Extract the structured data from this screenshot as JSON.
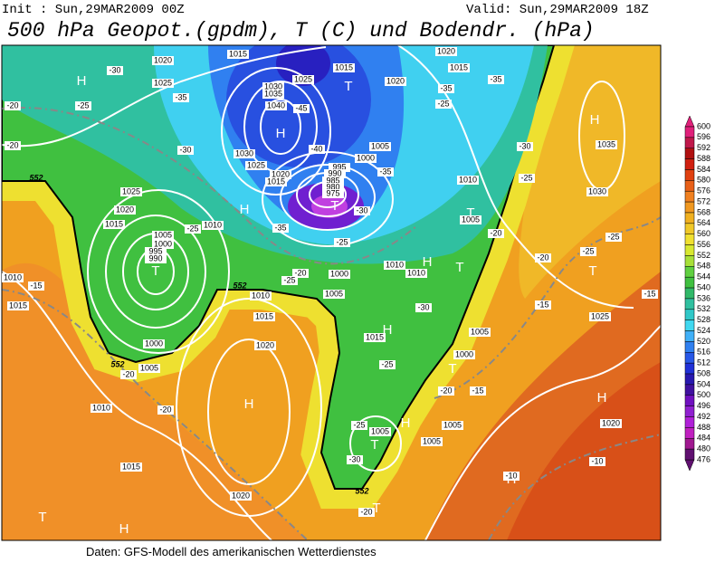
{
  "header": {
    "init": "Init : Sun,29MAR2009 00Z",
    "valid": "Valid: Sun,29MAR2009 18Z",
    "title": "500 hPa Geopot.(gpdm), T (C) und Bodendr. (hPa)"
  },
  "colorbar": {
    "labels": [
      "600",
      "596",
      "592",
      "588",
      "584",
      "580",
      "576",
      "572",
      "568",
      "564",
      "560",
      "556",
      "552",
      "548",
      "544",
      "540",
      "536",
      "532",
      "528",
      "524",
      "520",
      "516",
      "512",
      "508",
      "504",
      "500",
      "496",
      "492",
      "488",
      "484",
      "480",
      "476"
    ],
    "colors": [
      "#e0207a",
      "#c0184a",
      "#b01010",
      "#d02010",
      "#e04010",
      "#e86018",
      "#f08020",
      "#f09820",
      "#f0b020",
      "#f0c828",
      "#f0e030",
      "#d8e830",
      "#a8e038",
      "#60d040",
      "#40c040",
      "#30b868",
      "#30c0a0",
      "#30c8c8",
      "#40d8f0",
      "#40b0f8",
      "#3080f0",
      "#2858e8",
      "#2030d8",
      "#2818b0",
      "#4010a0",
      "#7010c0",
      "#9020d0",
      "#b020d8",
      "#c020c0",
      "#a01890",
      "#601070"
    ]
  },
  "map": {
    "highs_lows": [
      "H",
      "H",
      "H",
      "H",
      "H",
      "H",
      "H",
      "H",
      "H",
      "H",
      "H",
      "T",
      "T",
      "T",
      "T",
      "T",
      "T",
      "T",
      "T",
      "T",
      "T"
    ],
    "isobar_labels": [
      "1020",
      "1015",
      "1025",
      "1030",
      "1035",
      "1040",
      "1025",
      "1015",
      "1020",
      "1005",
      "1000",
      "995",
      "990",
      "985",
      "980",
      "975",
      "1030",
      "1025",
      "1020",
      "1015",
      "1025",
      "1020",
      "1015",
      "1010",
      "1005",
      "1000",
      "995",
      "990",
      "1000",
      "1005",
      "1010",
      "1010",
      "1010",
      "1015",
      "1020",
      "1000",
      "1005",
      "1010",
      "1015",
      "1010",
      "1015",
      "1020",
      "1015",
      "1005",
      "1005",
      "1005",
      "1000",
      "1005",
      "1020",
      "1025",
      "1030",
      "1035",
      "1010",
      "1005",
      "1015",
      "1020"
    ],
    "temp_labels": [
      "-30",
      "-35",
      "-25",
      "-20",
      "-30",
      "-20",
      "-25",
      "-35",
      "-20",
      "-25",
      "-25",
      "-30",
      "-45",
      "-40",
      "-35",
      "-30",
      "-25",
      "-20",
      "-15",
      "-20",
      "-20",
      "-15",
      "-20",
      "-25",
      "-25",
      "-20",
      "-25",
      "-30",
      "-35",
      "-35",
      "-15",
      "-15",
      "-10",
      "-10",
      "-25",
      "-30",
      "-20",
      "-25"
    ],
    "contour_labels": [
      "552",
      "552",
      "552",
      "552"
    ]
  },
  "footer": "Daten: GFS-Modell des amerikanischen Wetterdienstes"
}
